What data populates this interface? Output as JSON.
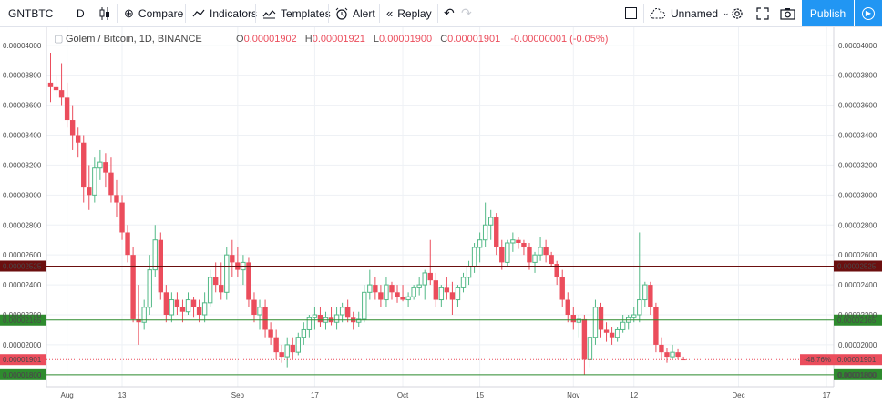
{
  "toolbar": {
    "symbol": "GNTBTC",
    "interval": "D",
    "compare": "Compare",
    "indicators": "Indicators",
    "templates": "Templates",
    "alert": "Alert",
    "replay": "Replay",
    "layout_name": "Unnamed",
    "publish": "Publish"
  },
  "legend": {
    "title": "Golem / Bitcoin, 1D, BINANCE",
    "o_label": "O",
    "o_value": "0.00001902",
    "h_label": "H",
    "h_value": "0.00001921",
    "l_label": "L",
    "l_value": "0.00001900",
    "c_label": "C",
    "c_value": "0.00001901",
    "change": "-0.00000001 (-0.05%)"
  },
  "colors": {
    "up": "#53b987",
    "down": "#eb4d5c",
    "grid": "#eef1f5"
  },
  "chart_data": {
    "type": "candlestick",
    "title": "Golem / Bitcoin, 1D, BINANCE",
    "y_range": [
      1.72e-05,
      4.12e-05
    ],
    "y_ticks": [
      "0.00001800",
      "0.00002000",
      "0.00002200",
      "0.00002400",
      "0.00002600",
      "0.00002800",
      "0.00003000",
      "0.00003200",
      "0.00003400",
      "0.00003600",
      "0.00003800",
      "0.00004000"
    ],
    "x_ticks": [
      {
        "label": "Aug",
        "day": 3
      },
      {
        "label": "13",
        "day": 13
      },
      {
        "label": "Sep",
        "day": 34
      },
      {
        "label": "17",
        "day": 48
      },
      {
        "label": "Oct",
        "day": 64
      },
      {
        "label": "15",
        "day": 78
      },
      {
        "label": "Nov",
        "day": 95
      },
      {
        "label": "12",
        "day": 106
      },
      {
        "label": "Dec",
        "day": 125
      },
      {
        "label": "17",
        "day": 141
      }
    ],
    "horizontal_lines": [
      {
        "price": 2.525e-05,
        "label": "0.00002525",
        "color": "#6b0f0f",
        "style": "solid"
      },
      {
        "price": 2.165e-05,
        "label": "0.00002165",
        "color": "#2e8b2e",
        "style": "solid"
      },
      {
        "price": 1.8e-05,
        "label": "0.00001800",
        "color": "#2e8b2e",
        "style": "solid"
      },
      {
        "price": 1.901e-05,
        "label": "0.00001901",
        "color": "#eb4d5c",
        "style": "dotted"
      }
    ],
    "last_price_badge": {
      "price": 1.901e-05,
      "change_label": "-48.76%"
    },
    "candles": [
      [
        3.75e-05,
        3.95e-05,
        3.62e-05,
        3.72e-05
      ],
      [
        3.72e-05,
        3.8e-05,
        3.65e-05,
        3.7e-05
      ],
      [
        3.7e-05,
        3.88e-05,
        3.6e-05,
        3.65e-05
      ],
      [
        3.65e-05,
        3.75e-05,
        3.45e-05,
        3.5e-05
      ],
      [
        3.5e-05,
        3.6e-05,
        3.3e-05,
        3.4e-05
      ],
      [
        3.4e-05,
        3.45e-05,
        3.25e-05,
        3.35e-05
      ],
      [
        3.35e-05,
        3.4e-05,
        2.95e-05,
        3.05e-05
      ],
      [
        3.05e-05,
        3.2e-05,
        2.9e-05,
        3e-05
      ],
      [
        3e-05,
        3.25e-05,
        2.95e-05,
        3.18e-05
      ],
      [
        3.18e-05,
        3.3e-05,
        3.1e-05,
        3.22e-05
      ],
      [
        3.22e-05,
        3.28e-05,
        3.05e-05,
        3.15e-05
      ],
      [
        3.15e-05,
        3.25e-05,
        2.95e-05,
        3e-05
      ],
      [
        3e-05,
        3.1e-05,
        2.85e-05,
        2.95e-05
      ],
      [
        2.95e-05,
        3e-05,
        2.7e-05,
        2.75e-05
      ],
      [
        2.75e-05,
        2.8e-05,
        2.55e-05,
        2.6e-05
      ],
      [
        2.6e-05,
        2.65e-05,
        2.15e-05,
        2.17e-05
      ],
      [
        2.17e-05,
        2.4e-05,
        2e-05,
        2.15e-05
      ],
      [
        2.15e-05,
        2.3e-05,
        2.1e-05,
        2.25e-05
      ],
      [
        2.25e-05,
        2.6e-05,
        2.2e-05,
        2.5e-05
      ],
      [
        2.5e-05,
        2.8e-05,
        2.45e-05,
        2.7e-05
      ],
      [
        2.7e-05,
        2.75e-05,
        2.3e-05,
        2.35e-05
      ],
      [
        2.35e-05,
        2.4e-05,
        2.15e-05,
        2.2e-05
      ],
      [
        2.2e-05,
        2.35e-05,
        2.15e-05,
        2.3e-05
      ],
      [
        2.3e-05,
        2.35e-05,
        2.2e-05,
        2.25e-05
      ],
      [
        2.25e-05,
        2.3e-05,
        2.15e-05,
        2.22e-05
      ],
      [
        2.22e-05,
        2.35e-05,
        2.2e-05,
        2.3e-05
      ],
      [
        2.3e-05,
        2.32e-05,
        2.18e-05,
        2.25e-05
      ],
      [
        2.25e-05,
        2.3e-05,
        2.15e-05,
        2.2e-05
      ],
      [
        2.2e-05,
        2.35e-05,
        2.15e-05,
        2.28e-05
      ],
      [
        2.28e-05,
        2.5e-05,
        2.25e-05,
        2.45e-05
      ],
      [
        2.45e-05,
        2.55e-05,
        2.35e-05,
        2.4e-05
      ],
      [
        2.4e-05,
        2.55e-05,
        2.3e-05,
        2.35e-05
      ],
      [
        2.35e-05,
        2.65e-05,
        2.3e-05,
        2.6e-05
      ],
      [
        2.6e-05,
        2.7e-05,
        2.45e-05,
        2.55e-05
      ],
      [
        2.55e-05,
        2.65e-05,
        2.45e-05,
        2.5e-05
      ],
      [
        2.5e-05,
        2.6e-05,
        2.4e-05,
        2.55e-05
      ],
      [
        2.55e-05,
        2.58e-05,
        2.25e-05,
        2.3e-05
      ],
      [
        2.3e-05,
        2.35e-05,
        2.15e-05,
        2.2e-05
      ],
      [
        2.2e-05,
        2.3e-05,
        2.1e-05,
        2.25e-05
      ],
      [
        2.25e-05,
        2.3e-05,
        2.05e-05,
        2.1e-05
      ],
      [
        2.1e-05,
        2.15e-05,
        2e-05,
        2.05e-05
      ],
      [
        2.05e-05,
        2.1e-05,
        1.9e-05,
        1.95e-05
      ],
      [
        1.95e-05,
        2e-05,
        1.88e-05,
        1.92e-05
      ],
      [
        1.92e-05,
        2.05e-05,
        1.85e-05,
        2e-05
      ],
      [
        2e-05,
        2.05e-05,
        1.9e-05,
        1.95e-05
      ],
      [
        1.95e-05,
        2.08e-05,
        1.93e-05,
        2.05e-05
      ],
      [
        2.05e-05,
        2.15e-05,
        2e-05,
        2.1e-05
      ],
      [
        2.1e-05,
        2.2e-05,
        2.05e-05,
        2.18e-05
      ],
      [
        2.18e-05,
        2.25e-05,
        2.1e-05,
        2.2e-05
      ],
      [
        2.2e-05,
        2.25e-05,
        2.12e-05,
        2.15e-05
      ],
      [
        2.15e-05,
        2.22e-05,
        2.1e-05,
        2.18e-05
      ],
      [
        2.18e-05,
        2.25e-05,
        2.13e-05,
        2.15e-05
      ],
      [
        2.15e-05,
        2.25e-05,
        2.1e-05,
        2.2e-05
      ],
      [
        2.2e-05,
        2.28e-05,
        2.15e-05,
        2.25e-05
      ],
      [
        2.25e-05,
        2.3e-05,
        2.15e-05,
        2.18e-05
      ],
      [
        2.18e-05,
        2.22e-05,
        2.1e-05,
        2.15e-05
      ],
      [
        2.15e-05,
        2.22e-05,
        2.12e-05,
        2.17e-05
      ],
      [
        2.17e-05,
        2.4e-05,
        2.15e-05,
        2.35e-05
      ],
      [
        2.35e-05,
        2.5e-05,
        2.3e-05,
        2.4e-05
      ],
      [
        2.4e-05,
        2.45e-05,
        2.3e-05,
        2.35e-05
      ],
      [
        2.35e-05,
        2.4e-05,
        2.25e-05,
        2.3e-05
      ],
      [
        2.3e-05,
        2.45e-05,
        2.25e-05,
        2.4e-05
      ],
      [
        2.4e-05,
        2.42e-05,
        2.3e-05,
        2.35e-05
      ],
      [
        2.35e-05,
        2.4e-05,
        2.28e-05,
        2.32e-05
      ],
      [
        2.32e-05,
        2.4e-05,
        2.29e-05,
        2.3e-05
      ],
      [
        2.3e-05,
        2.35e-05,
        2.25e-05,
        2.32e-05
      ],
      [
        2.32e-05,
        2.4e-05,
        2.3e-05,
        2.38e-05
      ],
      [
        2.38e-05,
        2.45e-05,
        2.33e-05,
        2.4e-05
      ],
      [
        2.4e-05,
        2.5e-05,
        2.3e-05,
        2.48e-05
      ],
      [
        2.48e-05,
        2.7e-05,
        2.4e-05,
        2.43e-05
      ],
      [
        2.43e-05,
        2.48e-05,
        2.25e-05,
        2.3e-05
      ],
      [
        2.3e-05,
        2.4e-05,
        2.25e-05,
        2.38e-05
      ],
      [
        2.38e-05,
        2.45e-05,
        2.3e-05,
        2.35e-05
      ],
      [
        2.35e-05,
        2.42e-05,
        2.2e-05,
        2.3e-05
      ],
      [
        2.3e-05,
        2.4e-05,
        2.25e-05,
        2.38e-05
      ],
      [
        2.38e-05,
        2.48e-05,
        2.35e-05,
        2.45e-05
      ],
      [
        2.45e-05,
        2.56e-05,
        2.4e-05,
        2.52e-05
      ],
      [
        2.52e-05,
        2.68e-05,
        2.48e-05,
        2.65e-05
      ],
      [
        2.65e-05,
        2.75e-05,
        2.55e-05,
        2.7e-05
      ],
      [
        2.7e-05,
        2.95e-05,
        2.65e-05,
        2.8e-05
      ],
      [
        2.8e-05,
        2.9e-05,
        2.7e-05,
        2.85e-05
      ],
      [
        2.85e-05,
        2.88e-05,
        2.6e-05,
        2.65e-05
      ],
      [
        2.65e-05,
        2.7e-05,
        2.5e-05,
        2.55e-05
      ],
      [
        2.55e-05,
        2.7e-05,
        2.52e-05,
        2.68e-05
      ],
      [
        2.68e-05,
        2.75e-05,
        2.62e-05,
        2.7e-05
      ],
      [
        2.7e-05,
        2.72e-05,
        2.64e-05,
        2.68e-05
      ],
      [
        2.68e-05,
        2.7e-05,
        2.6e-05,
        2.65e-05
      ],
      [
        2.65e-05,
        2.68e-05,
        2.5e-05,
        2.55e-05
      ],
      [
        2.55e-05,
        2.62e-05,
        2.48e-05,
        2.6e-05
      ],
      [
        2.6e-05,
        2.72e-05,
        2.56e-05,
        2.65e-05
      ],
      [
        2.65e-05,
        2.7e-05,
        2.55e-05,
        2.6e-05
      ],
      [
        2.6e-05,
        2.62e-05,
        2.52e-05,
        2.54e-05
      ],
      [
        2.54e-05,
        2.56e-05,
        2.4e-05,
        2.45e-05
      ],
      [
        2.45e-05,
        2.5e-05,
        2.25e-05,
        2.3e-05
      ],
      [
        2.3e-05,
        2.35e-05,
        2.15e-05,
        2.2e-05
      ],
      [
        2.2e-05,
        2.25e-05,
        2.1e-05,
        2.15e-05
      ],
      [
        2.15e-05,
        2.2e-05,
        2.05e-05,
        2.17e-05
      ],
      [
        2.17e-05,
        2.2e-05,
        1.8e-05,
        1.9e-05
      ],
      [
        1.9e-05,
        2.05e-05,
        1.85e-05,
        2.05e-05
      ],
      [
        2.05e-05,
        2.3e-05,
        2e-05,
        2.25e-05
      ],
      [
        2.25e-05,
        2.28e-05,
        2.05e-05,
        2.1e-05
      ],
      [
        2.1e-05,
        2.15e-05,
        2.02e-05,
        2.08e-05
      ],
      [
        2.08e-05,
        2.12e-05,
        2e-05,
        2.05e-05
      ],
      [
        2.05e-05,
        2.12e-05,
        2.02e-05,
        2.1e-05
      ],
      [
        2.1e-05,
        2.2e-05,
        2.08e-05,
        2.15e-05
      ],
      [
        2.15e-05,
        2.2e-05,
        2.1e-05,
        2.18e-05
      ],
      [
        2.18e-05,
        2.25e-05,
        2.15e-05,
        2.2e-05
      ],
      [
        2.2e-05,
        2.75e-05,
        2.15e-05,
        2.3e-05
      ],
      [
        2.3e-05,
        2.42e-05,
        2.25e-05,
        2.4e-05
      ],
      [
        2.4e-05,
        2.42e-05,
        2.2e-05,
        2.25e-05
      ],
      [
        2.25e-05,
        2.28e-05,
        1.95e-05,
        2e-05
      ],
      [
        2e-05,
        2.05e-05,
        1.9e-05,
        1.95e-05
      ],
      [
        1.95e-05,
        1.98e-05,
        1.88e-05,
        1.92e-05
      ],
      [
        1.92e-05,
        2e-05,
        1.9e-05,
        1.95e-05
      ],
      [
        1.95e-05,
        1.97e-05,
        1.9e-05,
        1.92e-05
      ],
      [
        1.902e-05,
        1.921e-05,
        1.9e-05,
        1.901e-05
      ]
    ]
  }
}
